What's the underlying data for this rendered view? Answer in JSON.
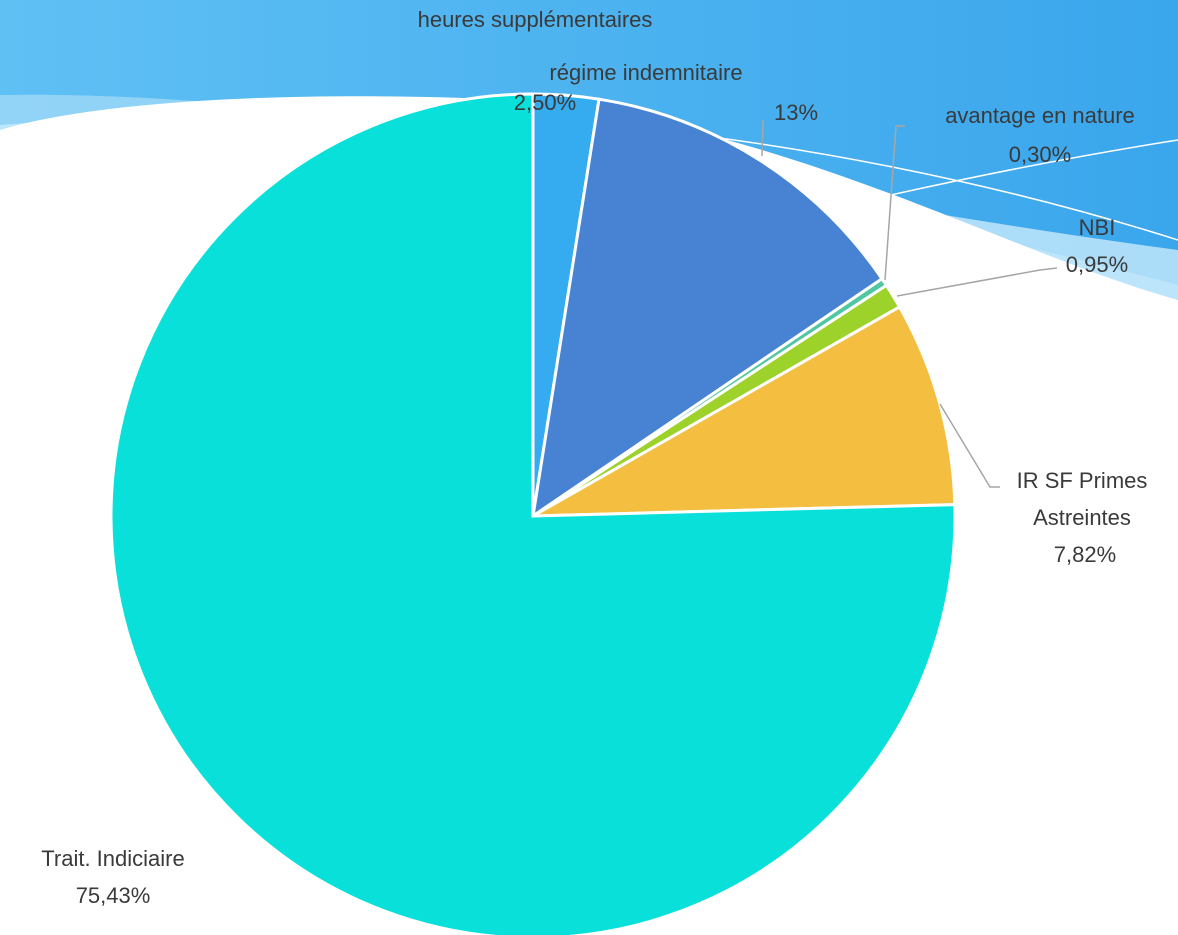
{
  "chart_data": {
    "type": "pie",
    "categories": [
      "heures supplémentaires",
      "régime indemnitaire",
      "avantage en nature",
      "NBI",
      "IR SF Primes Astreintes",
      "Trait. Indiciaire"
    ],
    "values": [
      2.5,
      13,
      0.3,
      0.95,
      7.82,
      75.43
    ],
    "value_labels": [
      "2,50%",
      "13%",
      "0,30%",
      "0,95%",
      "7,82%",
      "75,43%"
    ],
    "colors": [
      "#35acf0",
      "#4883d3",
      "#4fc7a2",
      "#9dd22b",
      "#f4bf40",
      "#08e0d9"
    ]
  }
}
